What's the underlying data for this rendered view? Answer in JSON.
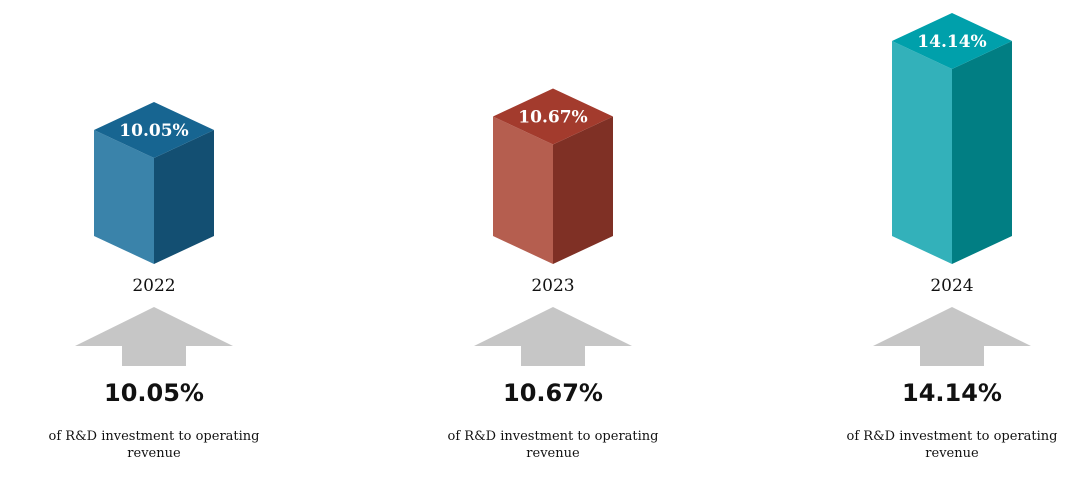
{
  "chart_data": {
    "type": "bar",
    "style": "3d-isometric-columns",
    "categories": [
      "2022",
      "2023",
      "2024"
    ],
    "values": [
      10.05,
      10.67,
      14.14
    ],
    "unit": "%",
    "data_labels": [
      "10.05%",
      "10.67%",
      "14.14%"
    ],
    "big_labels": [
      "10.05%",
      "10.67%",
      "14.14%"
    ],
    "caption_lines": [
      "of R&D investment to operating",
      "revenue"
    ],
    "colors": [
      {
        "top": "#176591",
        "front": "#3a83aa",
        "side": "#134f72"
      },
      {
        "top": "#a33b2d",
        "front": "#b55e4f",
        "side": "#7f3025"
      },
      {
        "top": "#00a0ab",
        "front": "#33b1ba",
        "side": "#017e83"
      }
    ],
    "arrow_color": "#c6c6c6",
    "arrow_direction": "up"
  }
}
